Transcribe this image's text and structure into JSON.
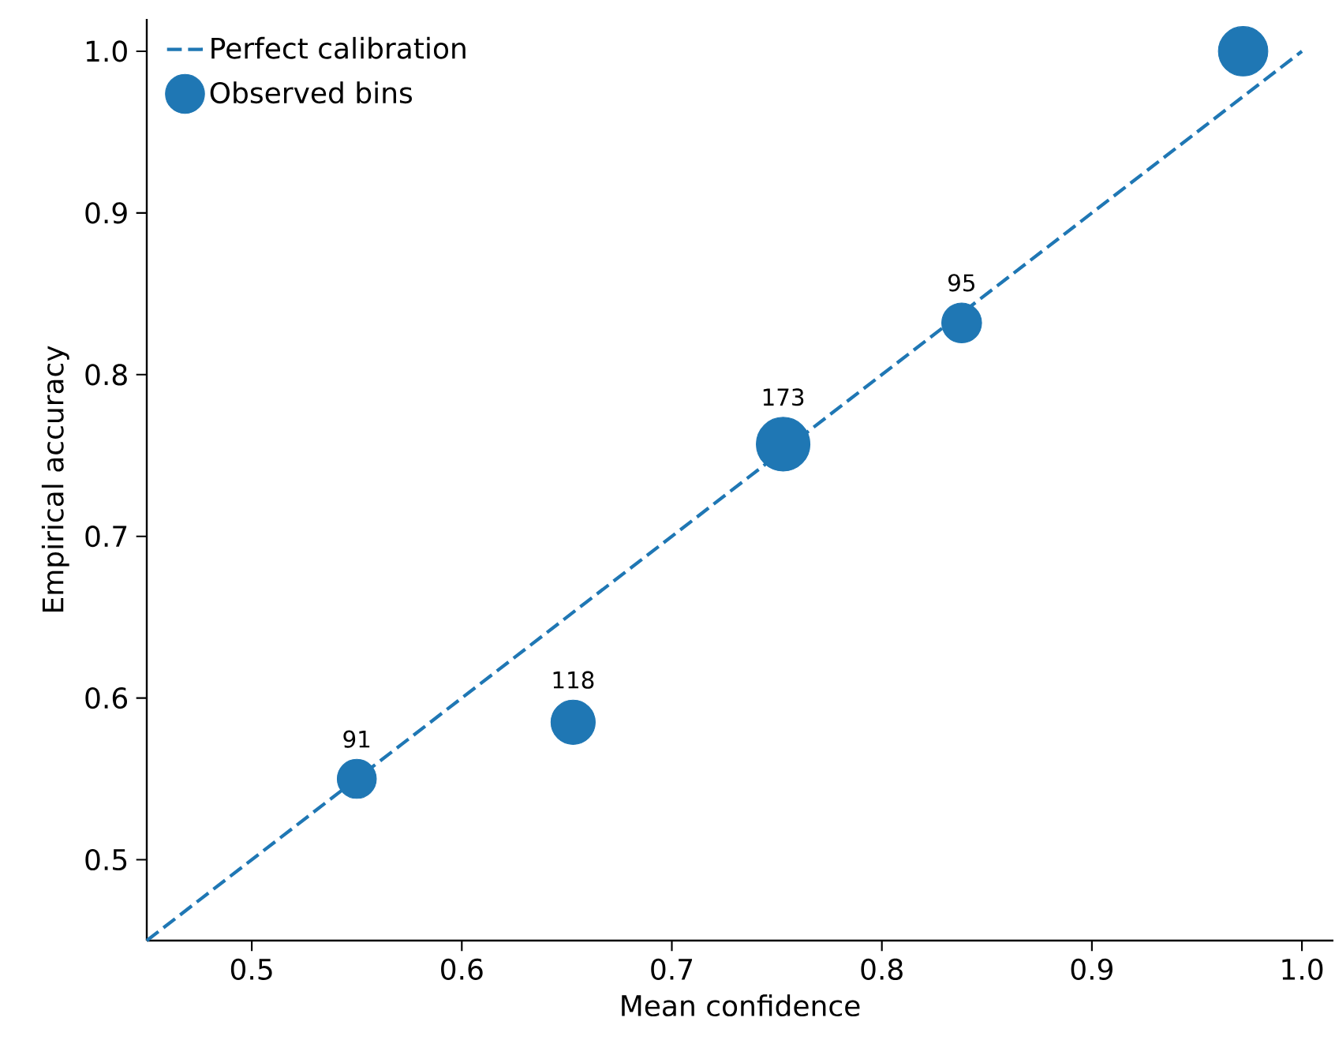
{
  "chart_data": {
    "type": "bubble",
    "xlabel": "Mean confidence",
    "ylabel": "Empirical accuracy",
    "xlim": [
      0.45,
      1.015
    ],
    "ylim": [
      0.45,
      1.02
    ],
    "xticks": [
      0.5,
      0.6,
      0.7,
      0.8,
      0.9,
      {
        "value": 1.0,
        "label": "1.0"
      }
    ],
    "yticks": [
      0.5,
      0.6,
      0.7,
      0.8,
      0.9,
      {
        "value": 1.0,
        "label": "1.0"
      }
    ],
    "legend": "top left",
    "series": [
      {
        "name": "Perfect calibration",
        "type": "line",
        "line_style": "dashed",
        "marker": "none",
        "color": "#1f77b4",
        "x": [
          0.45,
          1.0
        ],
        "values": [
          0.45,
          1.0
        ]
      },
      {
        "name": "Observed bins",
        "marker": "circle",
        "color": "#1f77b4",
        "x": [
          0.55,
          0.653,
          0.753,
          0.838,
          0.972
        ],
        "values": [
          0.55,
          0.585,
          0.757,
          0.832,
          1.0
        ],
        "sizes": [
          0.53,
          0.68,
          1.0,
          0.55,
          0.85
        ]
      }
    ],
    "annotations": [
      {
        "text": "91",
        "x": 0.55,
        "y": 0.55
      },
      {
        "text": "118",
        "x": 0.653,
        "y": 0.585
      },
      {
        "text": "173",
        "x": 0.753,
        "y": 0.757
      },
      {
        "text": "95",
        "x": 0.838,
        "y": 0.832
      }
    ]
  }
}
